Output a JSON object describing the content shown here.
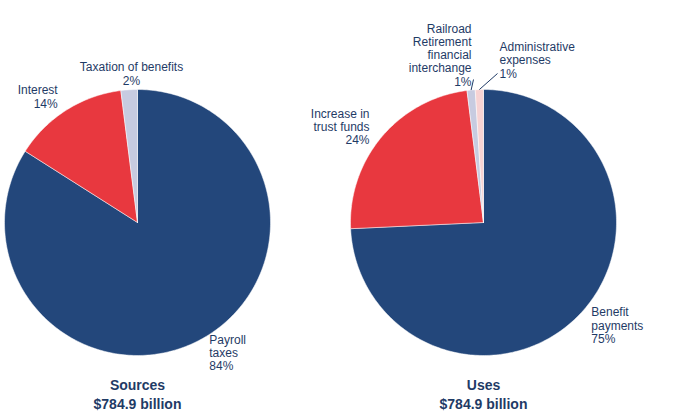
{
  "chart_data": [
    {
      "type": "pie",
      "title": "Sources",
      "subtitle": "$784.9 billion",
      "categories": [
        "Payroll taxes",
        "Interest",
        "Taxation of benefits"
      ],
      "values": [
        84,
        14,
        2
      ],
      "value_labels": [
        "84%",
        "14%",
        "2%"
      ],
      "colors": [
        "#23477b",
        "#e8383f",
        "#c7cbe0"
      ],
      "data_labels": true
    },
    {
      "type": "pie",
      "title": "Uses",
      "subtitle": "$784.9 billion",
      "categories": [
        "Benefit payments",
        "Increase in trust funds",
        "Railroad Retirement financial interchange",
        "Administrative expenses"
      ],
      "values": [
        75,
        24,
        1,
        1
      ],
      "value_labels": [
        "75%",
        "24%",
        "1%",
        "1%"
      ],
      "colors": [
        "#23477b",
        "#e8383f",
        "#c7cbe0",
        "#f7d3d3"
      ],
      "data_labels": true
    }
  ]
}
